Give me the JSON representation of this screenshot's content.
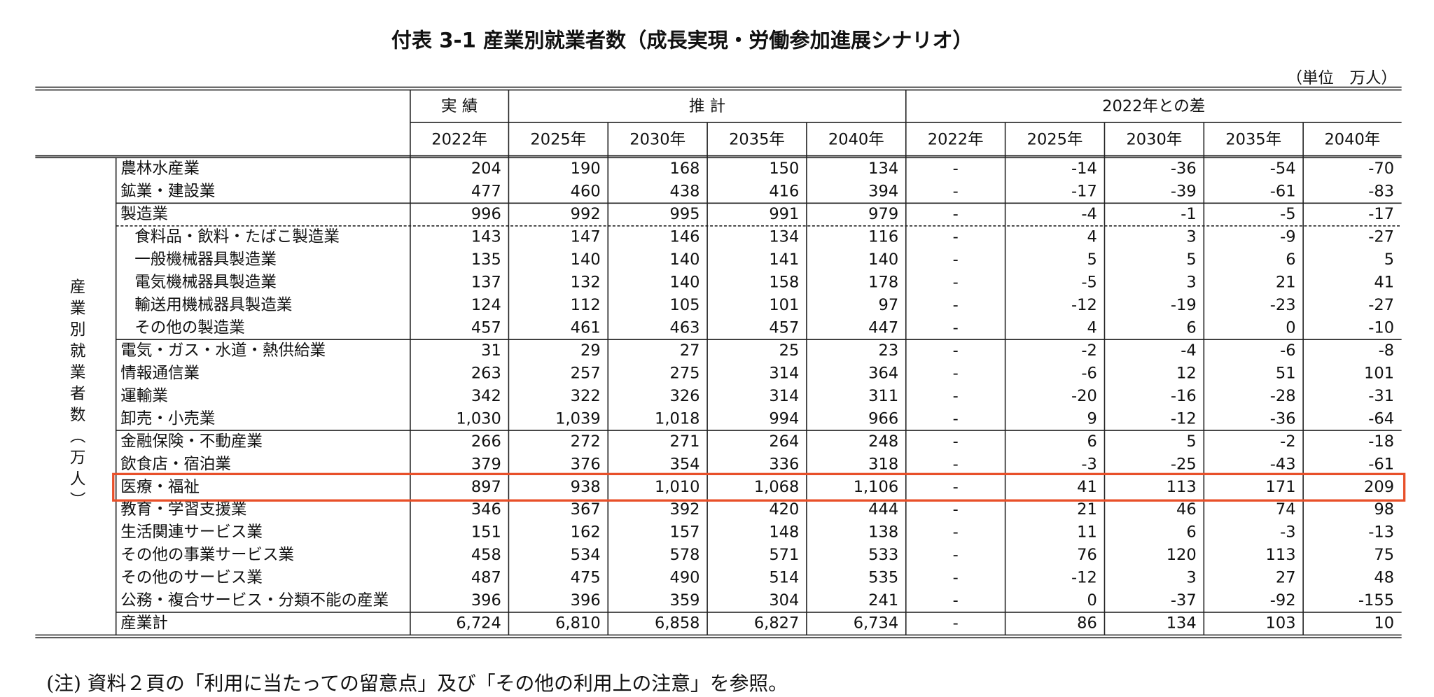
{
  "title": "付表 3-1  産業別就業者数（成長実現・労働参加進展シナリオ）",
  "unit": "（単位　万人）",
  "header": {
    "groups": [
      "実 績",
      "推 計",
      "2022年との差"
    ],
    "years": [
      "2022年",
      "2025年",
      "2030年",
      "2035年",
      "2040年",
      "2022年",
      "2025年",
      "2030年",
      "2035年",
      "2040年"
    ]
  },
  "side_label": "産業別就業者数（万人）",
  "rows": [
    {
      "label": "農林水産業",
      "values": [
        "204",
        "190",
        "168",
        "150",
        "134",
        "-",
        "-14",
        "-36",
        "-54",
        "-70"
      ]
    },
    {
      "label": "鉱業・建設業",
      "values": [
        "477",
        "460",
        "438",
        "416",
        "394",
        "-",
        "-17",
        "-39",
        "-61",
        "-83"
      ]
    },
    {
      "label": "製造業",
      "values": [
        "996",
        "992",
        "995",
        "991",
        "979",
        "-",
        "-4",
        "-1",
        "-5",
        "-17"
      ]
    },
    {
      "label": "食料品・飲料・たばこ製造業",
      "values": [
        "143",
        "147",
        "146",
        "134",
        "116",
        "-",
        "4",
        "3",
        "-9",
        "-27"
      ]
    },
    {
      "label": "一般機械器具製造業",
      "values": [
        "135",
        "140",
        "140",
        "141",
        "140",
        "-",
        "5",
        "5",
        "6",
        "5"
      ]
    },
    {
      "label": "電気機械器具製造業",
      "values": [
        "137",
        "132",
        "140",
        "158",
        "178",
        "-",
        "-5",
        "3",
        "21",
        "41"
      ]
    },
    {
      "label": "輸送用機械器具製造業",
      "values": [
        "124",
        "112",
        "105",
        "101",
        "97",
        "-",
        "-12",
        "-19",
        "-23",
        "-27"
      ]
    },
    {
      "label": "その他の製造業",
      "values": [
        "457",
        "461",
        "463",
        "457",
        "447",
        "-",
        "4",
        "6",
        "0",
        "-10"
      ]
    },
    {
      "label": "電気・ガス・水道・熱供給業",
      "values": [
        "31",
        "29",
        "27",
        "25",
        "23",
        "-",
        "-2",
        "-4",
        "-6",
        "-8"
      ]
    },
    {
      "label": "情報通信業",
      "values": [
        "263",
        "257",
        "275",
        "314",
        "364",
        "-",
        "-6",
        "12",
        "51",
        "101"
      ]
    },
    {
      "label": "運輸業",
      "values": [
        "342",
        "322",
        "326",
        "314",
        "311",
        "-",
        "-20",
        "-16",
        "-28",
        "-31"
      ]
    },
    {
      "label": "卸売・小売業",
      "values": [
        "1,030",
        "1,039",
        "1,018",
        "994",
        "966",
        "-",
        "9",
        "-12",
        "-36",
        "-64"
      ]
    },
    {
      "label": "金融保険・不動産業",
      "values": [
        "266",
        "272",
        "271",
        "264",
        "248",
        "-",
        "6",
        "5",
        "-2",
        "-18"
      ]
    },
    {
      "label": "飲食店・宿泊業",
      "values": [
        "379",
        "376",
        "354",
        "336",
        "318",
        "-",
        "-3",
        "-25",
        "-43",
        "-61"
      ]
    },
    {
      "label": "医療・福祉",
      "values": [
        "897",
        "938",
        "1,010",
        "1,068",
        "1,106",
        "-",
        "41",
        "113",
        "171",
        "209"
      ]
    },
    {
      "label": "教育・学習支援業",
      "values": [
        "346",
        "367",
        "392",
        "420",
        "444",
        "-",
        "21",
        "46",
        "74",
        "98"
      ]
    },
    {
      "label": "生活関連サービス業",
      "values": [
        "151",
        "162",
        "157",
        "148",
        "138",
        "-",
        "11",
        "6",
        "-3",
        "-13"
      ]
    },
    {
      "label": "その他の事業サービス業",
      "values": [
        "458",
        "534",
        "578",
        "571",
        "533",
        "-",
        "76",
        "120",
        "113",
        "75"
      ]
    },
    {
      "label": "その他のサービス業",
      "values": [
        "487",
        "475",
        "490",
        "514",
        "535",
        "-",
        "-12",
        "3",
        "27",
        "48"
      ]
    },
    {
      "label": "公務・複合サービス・分類不能の産業",
      "values": [
        "396",
        "396",
        "359",
        "304",
        "241",
        "-",
        "0",
        "-37",
        "-92",
        "-155"
      ]
    },
    {
      "label": "産業計",
      "values": [
        "6,724",
        "6,810",
        "6,858",
        "6,827",
        "6,734",
        "-",
        "86",
        "134",
        "103",
        "10"
      ]
    }
  ],
  "note": "(注)  資料２頁の「利用に当たっての留意点」及び「その他の利用上の注意」を参照。"
}
